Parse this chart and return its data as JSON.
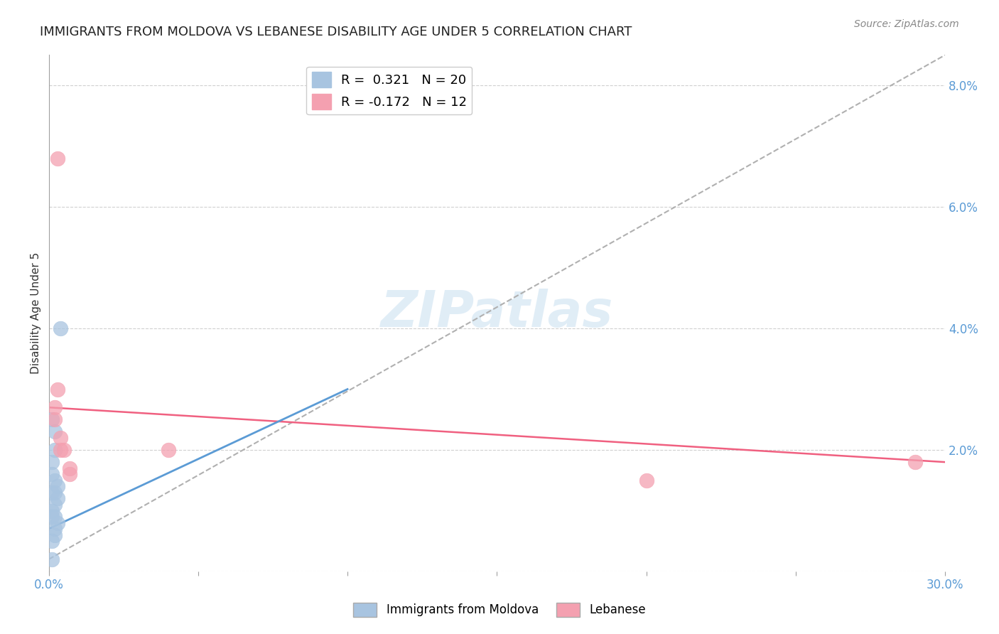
{
  "title": "IMMIGRANTS FROM MOLDOVA VS LEBANESE DISABILITY AGE UNDER 5 CORRELATION CHART",
  "source": "Source: ZipAtlas.com",
  "ylabel": "Disability Age Under 5",
  "xlim": [
    0.0,
    0.3
  ],
  "ylim": [
    0.0,
    0.085
  ],
  "moldova_r": 0.321,
  "moldova_n": 20,
  "lebanese_r": -0.172,
  "lebanese_n": 12,
  "moldova_color": "#a8c4e0",
  "lebanese_color": "#f4a0b0",
  "moldova_line_color": "#5b9bd5",
  "lebanese_line_color": "#f06080",
  "background_color": "#ffffff",
  "grid_color": "#d0d0d0",
  "axis_color": "#a0a0a0",
  "tick_label_color": "#5b9bd5",
  "moldova_scatter": [
    [
      0.001,
      0.025
    ],
    [
      0.002,
      0.023
    ],
    [
      0.001,
      0.018
    ],
    [
      0.002,
      0.02
    ],
    [
      0.002,
      0.015
    ],
    [
      0.001,
      0.016
    ],
    [
      0.001,
      0.013
    ],
    [
      0.002,
      0.013
    ],
    [
      0.003,
      0.014
    ],
    [
      0.003,
      0.012
    ],
    [
      0.002,
      0.011
    ],
    [
      0.001,
      0.01
    ],
    [
      0.001,
      0.009
    ],
    [
      0.002,
      0.009
    ],
    [
      0.003,
      0.008
    ],
    [
      0.002,
      0.007
    ],
    [
      0.002,
      0.006
    ],
    [
      0.004,
      0.04
    ],
    [
      0.001,
      0.005
    ],
    [
      0.001,
      0.002
    ]
  ],
  "lebanese_scatter": [
    [
      0.002,
      0.027
    ],
    [
      0.002,
      0.025
    ],
    [
      0.003,
      0.03
    ],
    [
      0.004,
      0.022
    ],
    [
      0.004,
      0.02
    ],
    [
      0.003,
      0.068
    ],
    [
      0.005,
      0.02
    ],
    [
      0.007,
      0.017
    ],
    [
      0.007,
      0.016
    ],
    [
      0.04,
      0.02
    ],
    [
      0.2,
      0.015
    ],
    [
      0.29,
      0.018
    ]
  ],
  "legend_labels": [
    "Immigrants from Moldova",
    "Lebanese"
  ],
  "watermark_text": "ZIPatlas",
  "title_fontsize": 13,
  "label_fontsize": 11,
  "tick_fontsize": 12,
  "legend_fontsize": 13
}
